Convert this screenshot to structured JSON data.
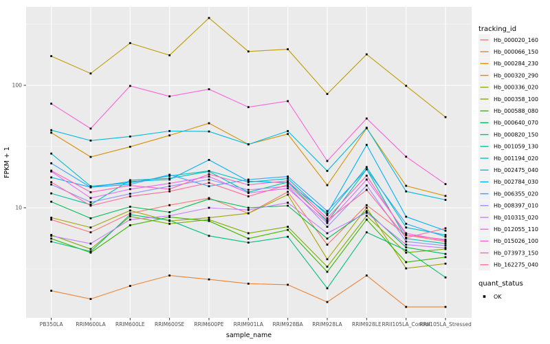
{
  "figure": {
    "background": "#FFFFFF",
    "panel_background": "#EBEBEB",
    "gridline_color": "#FFFFFF",
    "axis_text_color": "#4D4D4D",
    "title_text_color": "#000000",
    "tick_color": "#333333",
    "point_color": "#000000",
    "legend_key_background": "#F2F2F2"
  },
  "chart_data": {
    "type": "line",
    "xlabel": "sample_name",
    "ylabel": "FPKM + 1",
    "y_scale": "log10",
    "y_tick_labels": [
      "100",
      "10"
    ],
    "y_ticks": [
      100,
      10
    ],
    "y_minor_ticks": [
      316.2,
      31.62,
      3.162
    ],
    "ylim": [
      1.26,
      437
    ],
    "grid": true,
    "legend_position": "right",
    "categories": [
      "PB350LA",
      "RRIM600LA",
      "RRIM600LE",
      "RRIM600SE",
      "RRIM600PE",
      "RRIM901LA",
      "RRIM928BA",
      "RRIM928LA",
      "RRIM928LE",
      "RRII105LA_Control",
      "RRII105LA_Stressed"
    ],
    "legend_title": "tracking_id",
    "quant_legend": {
      "title": "quant_status",
      "items": [
        {
          "label": "OK",
          "shape": "square",
          "color": "#000000"
        }
      ]
    },
    "series": [
      {
        "name": "Hb_000020_160",
        "color": "#F8766D",
        "values": [
          8.0,
          6.3,
          9.0,
          10.5,
          12.0,
          9.0,
          13.5,
          5.0,
          10.5,
          6.0,
          5.3
        ]
      },
      {
        "name": "Hb_000066_150",
        "color": "#EA8331",
        "values": [
          2.1,
          1.8,
          2.3,
          2.8,
          2.6,
          2.4,
          2.35,
          1.7,
          2.8,
          1.55,
          1.55
        ]
      },
      {
        "name": "Hb_000284_230",
        "color": "#D89000",
        "values": [
          41,
          26,
          31.5,
          39,
          49,
          33,
          40,
          15.3,
          44.6,
          15.1,
          12.5
        ]
      },
      {
        "name": "Hb_000320_290",
        "color": "#C09B00",
        "values": [
          173,
          125,
          221,
          176,
          355,
          189,
          197,
          85,
          179,
          99,
          55
        ]
      },
      {
        "name": "Hb_000336_020",
        "color": "#A3A500",
        "values": [
          8.3,
          6.9,
          9.5,
          7.8,
          8.3,
          9.0,
          12.8,
          3.8,
          10.0,
          3.2,
          3.5
        ]
      },
      {
        "name": "Hb_000358_100",
        "color": "#7CAE00",
        "values": [
          6.0,
          4.6,
          8.5,
          7.4,
          8.0,
          6.2,
          7.0,
          3.3,
          8.6,
          4.3,
          4.6
        ]
      },
      {
        "name": "Hb_000588_080",
        "color": "#39B600",
        "values": [
          5.6,
          4.3,
          7.2,
          8.4,
          7.8,
          5.6,
          6.6,
          3.0,
          8.0,
          3.6,
          3.95
        ]
      },
      {
        "name": "Hb_000640_070",
        "color": "#00BB4E",
        "values": [
          11.2,
          8.2,
          10.2,
          9.2,
          11.8,
          10.0,
          10.4,
          5.6,
          9.4,
          4.75,
          4.2
        ]
      },
      {
        "name": "Hb_000820_150",
        "color": "#00BF7D",
        "values": [
          5.3,
          4.4,
          8.8,
          7.9,
          5.9,
          5.2,
          5.8,
          2.2,
          6.3,
          4.5,
          2.7
        ]
      },
      {
        "name": "Hb_001059_130",
        "color": "#00C1A3",
        "values": [
          13.1,
          10.6,
          16.8,
          17.4,
          19.8,
          13.4,
          16.2,
          7.7,
          20.6,
          5.6,
          5.1
        ]
      },
      {
        "name": "Hb_001194_020",
        "color": "#00C0C3",
        "values": [
          27.7,
          15.0,
          16.0,
          18.2,
          20.0,
          16.2,
          17.3,
          8.7,
          21.5,
          6.9,
          6.0
        ]
      },
      {
        "name": "Hb_002475_040",
        "color": "#00BBDA",
        "values": [
          43,
          35.4,
          38.2,
          42.3,
          42,
          32.9,
          42.3,
          20,
          45,
          13.6,
          11.6
        ]
      },
      {
        "name": "Hb_002784_030",
        "color": "#00B0F6",
        "values": [
          17.7,
          14.7,
          16.4,
          17.0,
          24.6,
          16.5,
          16.0,
          9.0,
          32.6,
          8.45,
          6.5
        ]
      },
      {
        "name": "Hb_006355_020",
        "color": "#35A2FF",
        "values": [
          23.1,
          14.7,
          15.5,
          18.6,
          15.0,
          17.0,
          18.0,
          9.4,
          20.6,
          7.4,
          5.8
        ]
      },
      {
        "name": "Hb_008397_010",
        "color": "#9590FF",
        "values": [
          15.5,
          11.1,
          13.0,
          15.0,
          17.0,
          14.0,
          15.0,
          7.0,
          15.2,
          5.3,
          4.9
        ]
      },
      {
        "name": "Hb_010315_020",
        "color": "#C77CFF",
        "values": [
          5.9,
          5.1,
          8.0,
          8.6,
          10.0,
          9.6,
          11.0,
          6.2,
          9.1,
          5.0,
          4.7
        ]
      },
      {
        "name": "Hb_012055_110",
        "color": "#E76BF3",
        "values": [
          19.8,
          12.0,
          14.2,
          15.8,
          18.0,
          13.2,
          14.4,
          7.5,
          17.0,
          6.2,
          5.4
        ]
      },
      {
        "name": "Hb_015026_100",
        "color": "#FA62DB",
        "values": [
          70.8,
          44.3,
          98.9,
          81.3,
          92.9,
          66.4,
          74.3,
          24.1,
          53.6,
          26.1,
          15.6
        ]
      },
      {
        "name": "Hb_073973_150",
        "color": "#FF62BC",
        "values": [
          20.1,
          13.4,
          15.2,
          14.2,
          18.8,
          15.4,
          16.6,
          8.2,
          18.3,
          6.0,
          5.5
        ]
      },
      {
        "name": "Hb_162275_040",
        "color": "#FF6A98",
        "values": [
          16.2,
          10.4,
          12.4,
          13.6,
          16.0,
          12.4,
          15.4,
          7.9,
          14.0,
          5.7,
          6.8
        ]
      }
    ]
  }
}
